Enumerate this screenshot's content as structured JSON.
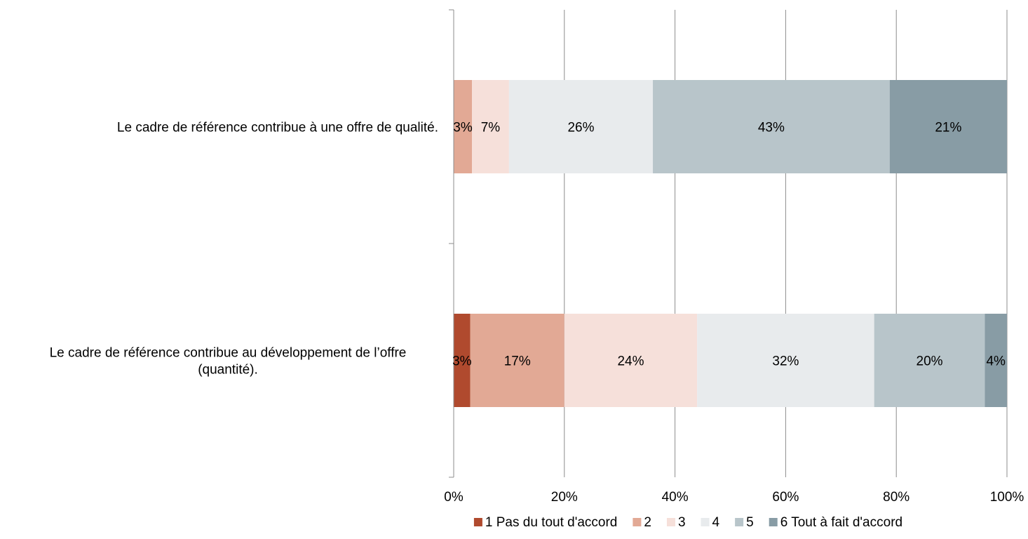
{
  "chart_data": {
    "type": "bar",
    "orientation": "horizontal",
    "stacked": "percent",
    "title": "",
    "xlabel": "",
    "ylabel": "",
    "xlim": [
      0,
      100
    ],
    "x_ticks": [
      "0%",
      "20%",
      "40%",
      "60%",
      "80%",
      "100%"
    ],
    "grid": "vertical",
    "legend_position": "bottom",
    "categories": [
      "Le cadre de référence contribue à une offre de qualité.",
      "Le cadre de référence contribue au développement de l’offre (quantité)."
    ],
    "category_lines": [
      [
        "Le cadre de référence contribue à une offre de qualité."
      ],
      [
        "Le cadre de référence contribue au développement de l’offre",
        "(quantité)."
      ]
    ],
    "series": [
      {
        "name": "1 Pas du tout d'accord",
        "color": "#b04a2e",
        "values": [
          0,
          3
        ],
        "labels": [
          "",
          "3%"
        ]
      },
      {
        "name": "2",
        "color": "#e2a995",
        "values": [
          3.3,
          17
        ],
        "labels": [
          "3%",
          "17%"
        ]
      },
      {
        "name": "3",
        "color": "#f6e0da",
        "values": [
          6.7,
          24
        ],
        "labels": [
          "7%",
          "24%"
        ]
      },
      {
        "name": "4",
        "color": "#e8ebed",
        "values": [
          26,
          32
        ],
        "labels": [
          "26%",
          "32%"
        ]
      },
      {
        "name": "5",
        "color": "#b8c5ca",
        "values": [
          42.8,
          20
        ],
        "labels": [
          "43%",
          "20%"
        ]
      },
      {
        "name": "6 Tout à fait d'accord",
        "color": "#889ca5",
        "values": [
          21.2,
          4
        ],
        "labels": [
          "21%",
          "4%"
        ]
      }
    ]
  }
}
